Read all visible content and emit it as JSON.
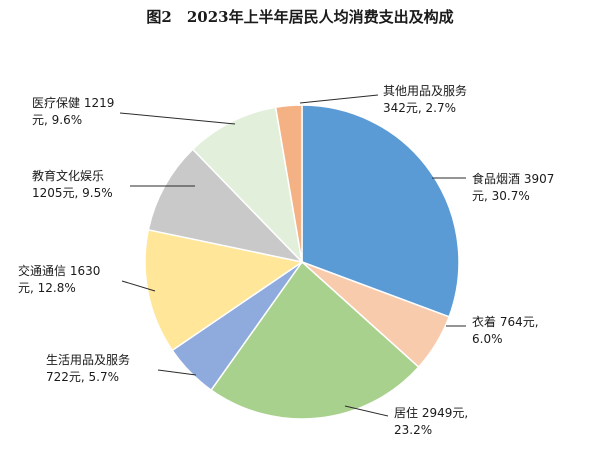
{
  "chart_data": {
    "type": "pie",
    "title": "图2　2023年上半年居民人均消费支出及构成",
    "slices": [
      {
        "name": "食品烟酒",
        "value": 3907,
        "percent": 30.7,
        "color": "#5b9bd5",
        "label_line1": "食品烟酒 3907",
        "label_line2": "元, 30.7%"
      },
      {
        "name": "衣着",
        "value": 764,
        "percent": 6.0,
        "color": "#f8cbad",
        "label_line1": "衣着 764元,",
        "label_line2": "6.0%"
      },
      {
        "name": "居住",
        "value": 2949,
        "percent": 23.2,
        "color": "#a9d18e",
        "label_line1": "居住 2949元,",
        "label_line2": "23.2%"
      },
      {
        "name": "生活用品及服务",
        "value": 722,
        "percent": 5.7,
        "color": "#8faadc",
        "label_line1": "生活用品及服务",
        "label_line2": "722元, 5.7%"
      },
      {
        "name": "交通通信",
        "value": 1630,
        "percent": 12.8,
        "color": "#ffe699",
        "label_line1": "交通通信 1630",
        "label_line2": "元, 12.8%"
      },
      {
        "name": "教育文化娱乐",
        "value": 1205,
        "percent": 9.5,
        "color": "#c9c9c9",
        "label_line1": "教育文化娱乐",
        "label_line2": "1205元, 9.5%"
      },
      {
        "name": "医疗保健",
        "value": 1219,
        "percent": 9.6,
        "color": "#e2efda",
        "label_line1": "医疗保健 1219",
        "label_line2": "元, 9.6%"
      },
      {
        "name": "其他用品及服务",
        "value": 342,
        "percent": 2.7,
        "color": "#f4b183",
        "label_line1": "其他用品及服务",
        "label_line2": "342元, 2.7%"
      }
    ],
    "start": "12 o'clock",
    "direction": "clockwise"
  }
}
